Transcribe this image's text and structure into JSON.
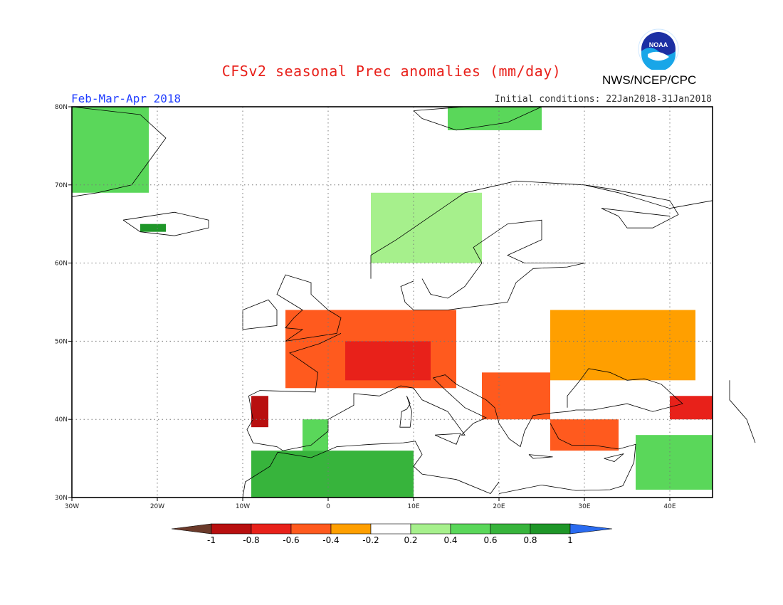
{
  "title": "CFSv2 seasonal Prec anomalies (mm/day)",
  "agency": "NWS/NCEP/CPC",
  "season": "Feb-Mar-Apr 2018",
  "initial_conditions": "Initial conditions: 22Jan2018-31Jan2018",
  "logo": {
    "icon": "noaa-logo",
    "text": "NOAA"
  },
  "axes": {
    "lon_labels": [
      "30W",
      "20W",
      "10W",
      "0",
      "10E",
      "20E",
      "30E",
      "40E"
    ],
    "lat_labels": [
      "80N",
      "70N",
      "60N",
      "50N",
      "40N",
      "30N"
    ],
    "lon_range": [
      -30,
      45
    ],
    "lat_range": [
      30,
      80
    ],
    "grid": "dotted"
  },
  "colorbar": {
    "labels": [
      "-1",
      "-0.8",
      "-0.6",
      "-0.4",
      "-0.2",
      "0.2",
      "0.4",
      "0.6",
      "0.8",
      "1"
    ],
    "colors": [
      "#6b3a2a",
      "#b80f0f",
      "#e8211a",
      "#ff5a1e",
      "#ff9f00",
      "#ffffff",
      "#a6f08c",
      "#5ad75a",
      "#37b43c",
      "#1e9628",
      "#2a6bf0"
    ]
  },
  "chart_data": {
    "type": "heatmap",
    "title": "CFSv2 seasonal Prec anomalies (mm/day)",
    "units": "mm/day",
    "regions": [
      {
        "name": "Greenland east coast",
        "bounds": {
          "lon": [
            -30,
            -21
          ],
          "lat": [
            69,
            80
          ]
        },
        "anomaly": 0.4
      },
      {
        "name": "Iceland west",
        "bounds": {
          "lon": [
            -22,
            -19
          ],
          "lat": [
            64,
            65
          ]
        },
        "anomaly": 0.8
      },
      {
        "name": "Norway coast",
        "bounds": {
          "lon": [
            5,
            18
          ],
          "lat": [
            60,
            69
          ]
        },
        "anomaly": 0.3
      },
      {
        "name": "Svalbard",
        "bounds": {
          "lon": [
            14,
            25
          ],
          "lat": [
            77,
            80
          ]
        },
        "anomaly": 0.4
      },
      {
        "name": "France/Germany",
        "bounds": {
          "lon": [
            -5,
            15
          ],
          "lat": [
            44,
            54
          ]
        },
        "anomaly": -0.4
      },
      {
        "name": "Eastern France",
        "bounds": {
          "lon": [
            2,
            12
          ],
          "lat": [
            45,
            50
          ]
        },
        "anomaly": -0.6
      },
      {
        "name": "Balkans",
        "bounds": {
          "lon": [
            18,
            26
          ],
          "lat": [
            40,
            46
          ]
        },
        "anomaly": -0.5
      },
      {
        "name": "Ukraine/Russia",
        "bounds": {
          "lon": [
            26,
            43
          ],
          "lat": [
            45,
            54
          ]
        },
        "anomaly": -0.3
      },
      {
        "name": "Portugal",
        "bounds": {
          "lon": [
            -9,
            -7
          ],
          "lat": [
            39,
            43
          ]
        },
        "anomaly": -0.9
      },
      {
        "name": "Spain south",
        "bounds": {
          "lon": [
            -3,
            0
          ],
          "lat": [
            36,
            40
          ]
        },
        "anomaly": 0.4
      },
      {
        "name": "North Africa",
        "bounds": {
          "lon": [
            -9,
            10
          ],
          "lat": [
            30,
            36
          ]
        },
        "anomaly": 0.6
      },
      {
        "name": "Western Turkey",
        "bounds": {
          "lon": [
            26,
            34
          ],
          "lat": [
            36,
            40
          ]
        },
        "anomaly": -0.4
      },
      {
        "name": "Caucasus",
        "bounds": {
          "lon": [
            40,
            45
          ],
          "lat": [
            40,
            43
          ]
        },
        "anomaly": -0.6
      },
      {
        "name": "Middle East",
        "bounds": {
          "lon": [
            36,
            45
          ],
          "lat": [
            31,
            38
          ]
        },
        "anomaly": 0.4
      }
    ]
  }
}
